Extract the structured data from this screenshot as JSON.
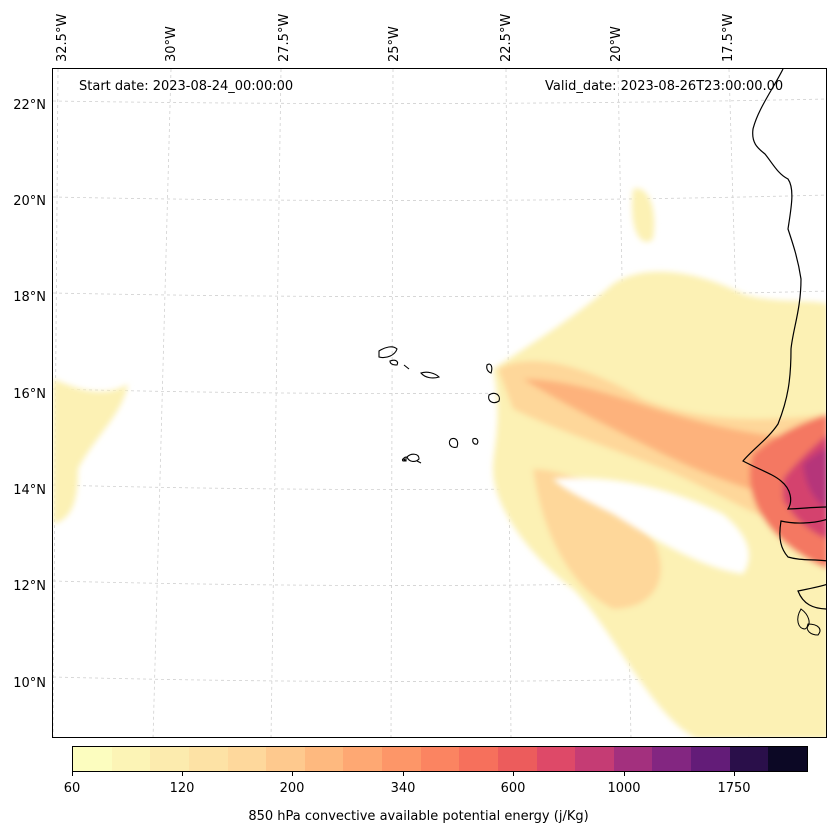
{
  "map": {
    "start_date_text": "Start date: 2023-08-24_00:00:00",
    "valid_date_text": "Valid_date: 2023-08-26T23:00:00.00",
    "longitude_labels": [
      "32.5°W",
      "30°W",
      "27.5°W",
      "25°W",
      "22.5°W",
      "20°W",
      "17.5°W"
    ],
    "latitude_labels": [
      "22°N",
      "20°N",
      "18°N",
      "16°N",
      "14°N",
      "12°N",
      "10°N"
    ],
    "field": "850 hPa convective available potential energy",
    "region": "Cabo Verde islands and West African coast (Senegal, Gambia, Guinea-Bissau)"
  },
  "colorbar": {
    "label": "850 hPa convective available potential energy (j/Kg)",
    "ticks": [
      "60",
      "120",
      "200",
      "340",
      "600",
      "1000",
      "1750"
    ],
    "colors": [
      "#fcfdbf",
      "#fcf4b6",
      "#fcebae",
      "#fde2a5",
      "#fed89c",
      "#fec98e",
      "#feb97f",
      "#fea873",
      "#fd9668",
      "#fb8461",
      "#f6705c",
      "#ec5c5c",
      "#de4968",
      "#c53c74",
      "#a3307e",
      "#832681",
      "#631c78",
      "#2a0f4a",
      "#0c0825"
    ]
  }
}
